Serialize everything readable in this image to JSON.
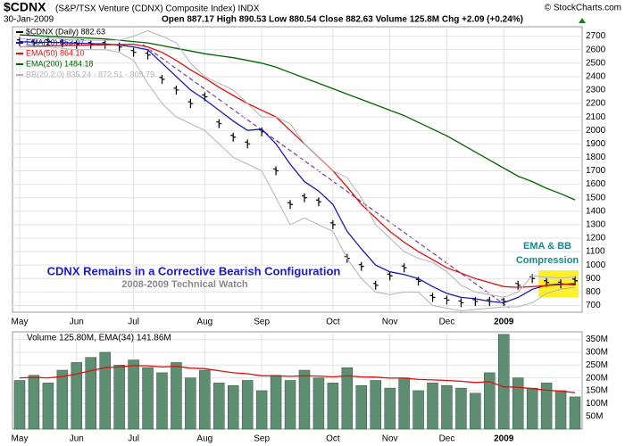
{
  "chart_data": [
    {
      "type": "ohlc",
      "title": "$CDNX",
      "subtitle": "(S&P/TSX Venture (CDNX) Composite Index) INDX",
      "date": "30-Jan-2009",
      "quote": "Open 887.17 High 890.53 Low 880.54 Close 882.63 Volume 125.8M Chg +2.09 (+0.24%)",
      "credit": "© StockCharts.com",
      "annotations": [
        "CDNX Remains in a Corrective Bearish Configuration",
        "2008-2009 Technical Watch",
        "EMA & BB",
        "Compression"
      ],
      "categories": [
        "May",
        null,
        null,
        null,
        "Jun",
        null,
        null,
        null,
        "Jul",
        null,
        null,
        null,
        null,
        "Aug",
        null,
        null,
        null,
        "Sep",
        null,
        null,
        null,
        null,
        "Oct",
        null,
        null,
        null,
        "Nov",
        null,
        null,
        null,
        "Dec",
        null,
        null,
        null,
        "2009",
        null,
        null,
        null,
        null,
        null
      ],
      "ylim": [
        650,
        2770
      ],
      "yticks": [
        700,
        800,
        900,
        1000,
        1100,
        1200,
        1300,
        1400,
        1500,
        1600,
        1700,
        1800,
        1900,
        2000,
        2100,
        2200,
        2300,
        2400,
        2500,
        2600,
        2700
      ],
      "grid": true,
      "series": [
        {
          "name": "$CDNX (Daily) 882.63",
          "color": "#000000",
          "values": [
            2660,
            2650,
            2660,
            2650,
            2640,
            2640,
            2640,
            2620,
            2580,
            2560,
            2380,
            2300,
            2200,
            2250,
            2050,
            1950,
            1900,
            1990,
            1700,
            1450,
            1500,
            1470,
            1300,
            1050,
            990,
            850,
            920,
            980,
            880,
            760,
            740,
            720,
            730,
            730,
            730,
            850,
            900,
            870,
            860,
            882.63
          ]
        },
        {
          "name": "EMA(20) 853.07",
          "color": "#1a1aa8",
          "values": [
            2660,
            2655,
            2655,
            2652,
            2648,
            2645,
            2642,
            2635,
            2620,
            2600,
            2500,
            2400,
            2300,
            2230,
            2150,
            2070,
            2000,
            2010,
            1900,
            1750,
            1620,
            1550,
            1450,
            1250,
            1120,
            1000,
            950,
            930,
            900,
            840,
            790,
            760,
            750,
            730,
            720,
            760,
            820,
            850,
            860,
            853.07
          ]
        },
        {
          "name": "EMA(50) 864.10",
          "color": "#e01010",
          "values": [
            2620,
            2625,
            2628,
            2630,
            2632,
            2634,
            2636,
            2638,
            2640,
            2620,
            2580,
            2520,
            2450,
            2390,
            2320,
            2260,
            2200,
            2150,
            2100,
            2000,
            1900,
            1800,
            1700,
            1580,
            1450,
            1350,
            1250,
            1170,
            1100,
            1040,
            980,
            940,
            900,
            870,
            840,
            835,
            840,
            848,
            855,
            864.1
          ]
        },
        {
          "name": "EMA(200) 1484.18",
          "color": "#006400",
          "values": [
            2710,
            2705,
            2700,
            2695,
            2690,
            2685,
            2680,
            2670,
            2660,
            2650,
            2630,
            2610,
            2590,
            2570,
            2555,
            2540,
            2520,
            2500,
            2470,
            2430,
            2390,
            2350,
            2310,
            2270,
            2230,
            2190,
            2150,
            2110,
            2060,
            2010,
            1960,
            1900,
            1840,
            1780,
            1720,
            1660,
            1620,
            1570,
            1530,
            1484.18
          ]
        },
        {
          "name": "BB(20,2.0) 835.24 - 872.51 - 909.79",
          "color": "#b4b4b4",
          "upper": [
            2680,
            2680,
            2690,
            2680,
            2670,
            2670,
            2670,
            2670,
            2700,
            2740,
            2700,
            2650,
            2500,
            2400,
            2350,
            2300,
            2200,
            2100,
            2100,
            2050,
            1900,
            1800,
            1700,
            1650,
            1500,
            1300,
            1200,
            1100,
            1050,
            1020,
            950,
            850,
            800,
            780,
            760,
            800,
            920,
            910,
            905,
            909.79
          ],
          "lower": [
            2620,
            2620,
            2620,
            2610,
            2600,
            2600,
            2600,
            2580,
            2520,
            2350,
            2200,
            2100,
            2050,
            2000,
            1900,
            1800,
            1750,
            1700,
            1500,
            1300,
            1350,
            1300,
            1250,
            1050,
            900,
            800,
            780,
            800,
            800,
            700,
            680,
            660,
            670,
            680,
            690,
            690,
            720,
            790,
            820,
            835.24
          ]
        }
      ]
    },
    {
      "type": "bar",
      "title": "Volume 125.80M, EMA(34) 141.86M",
      "categories": [
        "May",
        null,
        null,
        null,
        "Jun",
        null,
        null,
        null,
        "Jul",
        null,
        null,
        null,
        null,
        "Aug",
        null,
        null,
        null,
        "Sep",
        null,
        null,
        null,
        null,
        "Oct",
        null,
        null,
        null,
        "Nov",
        null,
        null,
        null,
        "Dec",
        null,
        null,
        null,
        "2009",
        null,
        null,
        null,
        null,
        null
      ],
      "ylim": [
        0,
        380
      ],
      "yticks": [
        {
          "value": 50,
          "label": "50M"
        },
        {
          "value": 100,
          "label": "100M"
        },
        {
          "value": 150,
          "label": "150M"
        },
        {
          "value": 200,
          "label": "200M"
        },
        {
          "value": 250,
          "label": "250M"
        },
        {
          "value": 300,
          "label": "300M"
        },
        {
          "value": 350,
          "label": "350M"
        }
      ],
      "grid": true,
      "series": [
        {
          "color": "#5f8f72",
          "values": [
            190,
            210,
            180,
            230,
            260,
            280,
            300,
            250,
            270,
            240,
            220,
            260,
            200,
            230,
            180,
            170,
            190,
            150,
            210,
            190,
            230,
            200,
            180,
            240,
            170,
            190,
            160,
            200,
            150,
            180,
            170,
            160,
            140,
            220,
            370,
            200,
            160,
            180,
            150,
            125.8
          ]
        },
        {
          "color": "#e01010",
          "values": [
            200,
            202,
            200,
            205,
            215,
            228,
            240,
            243,
            248,
            247,
            243,
            245,
            238,
            236,
            228,
            220,
            216,
            208,
            208,
            206,
            208,
            207,
            204,
            208,
            204,
            203,
            199,
            199,
            194,
            192,
            190,
            187,
            182,
            185,
            165,
            163,
            158,
            152,
            148,
            141.86
          ]
        }
      ]
    }
  ]
}
